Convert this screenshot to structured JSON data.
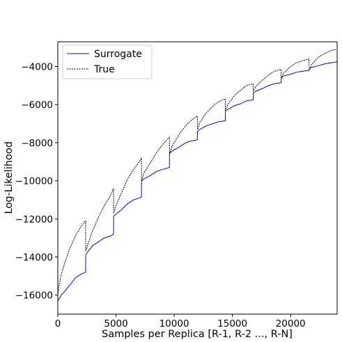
{
  "chart_data": {
    "type": "line",
    "title": "",
    "xlabel": "Samples per Replica [R-1, R-2 ..., R-N]",
    "ylabel": "Log-Likelihood",
    "xlim": [
      0,
      24000
    ],
    "ylim": [
      -17000,
      -2700
    ],
    "xticks": [
      0,
      5000,
      10000,
      15000,
      20000
    ],
    "xtick_labels": [
      "0",
      "5000",
      "10000",
      "15000",
      "20000"
    ],
    "yticks": [
      -16000,
      -14000,
      -12000,
      -10000,
      -8000,
      -6000,
      -4000
    ],
    "ytick_labels": [
      "−16000",
      "−14000",
      "−12000",
      "−10000",
      "−8000",
      "−6000",
      "−4000"
    ],
    "grid": false,
    "legend_position": "top-left",
    "series": [
      {
        "name": "Surrogate",
        "color": "#0000ff",
        "style": "solid",
        "x": [
          0,
          100,
          300,
          600,
          1000,
          1500,
          2000,
          2390,
          2400,
          2600,
          3000,
          3500,
          4000,
          4500,
          4790,
          4800,
          5000,
          5500,
          6000,
          6500,
          7000,
          7190,
          7200,
          7400,
          8000,
          8500,
          9000,
          9590,
          9600,
          9800,
          10500,
          11000,
          11500,
          11990,
          12000,
          12200,
          12800,
          13300,
          13800,
          14390,
          14400,
          14600,
          15200,
          15700,
          16200,
          16790,
          16800,
          17000,
          17600,
          18100,
          18600,
          19190,
          19200,
          19400,
          20000,
          20500,
          21000,
          21590,
          21600,
          21800,
          22400,
          23000,
          23500,
          24000
        ],
        "y": [
          -16300,
          -16200,
          -16000,
          -15800,
          -15500,
          -15100,
          -14900,
          -14800,
          -13900,
          -13700,
          -13400,
          -13200,
          -13000,
          -12900,
          -12800,
          -11850,
          -11750,
          -11500,
          -11200,
          -11000,
          -10900,
          -10850,
          -10000,
          -9900,
          -9700,
          -9500,
          -9400,
          -9300,
          -8550,
          -8450,
          -8200,
          -8000,
          -7900,
          -7850,
          -7400,
          -7300,
          -7100,
          -7000,
          -6900,
          -6850,
          -6350,
          -6250,
          -6050,
          -5950,
          -5800,
          -5750,
          -5400,
          -5300,
          -5150,
          -5000,
          -4900,
          -4850,
          -4600,
          -4500,
          -4400,
          -4300,
          -4250,
          -4200,
          -4150,
          -4050,
          -3950,
          -3850,
          -3800,
          -3750
        ]
      },
      {
        "name": "True",
        "color": "#000000",
        "style": "dashed",
        "x": [
          0,
          100,
          300,
          600,
          1000,
          1500,
          2000,
          2390,
          2400,
          2600,
          3000,
          3500,
          4000,
          4500,
          4790,
          4800,
          5000,
          5500,
          6000,
          6500,
          7000,
          7190,
          7200,
          7400,
          8000,
          8500,
          9000,
          9590,
          9600,
          9800,
          10500,
          11000,
          11500,
          11990,
          12000,
          12200,
          12800,
          13300,
          13800,
          14390,
          14400,
          14600,
          15200,
          15700,
          16200,
          16790,
          16800,
          17000,
          17600,
          18100,
          18600,
          19190,
          19200,
          19400,
          20000,
          20500,
          21000,
          21590,
          21600,
          21800,
          22400,
          23000,
          23500,
          24000
        ],
        "y": [
          -16000,
          -15500,
          -14900,
          -14300,
          -13600,
          -12900,
          -12400,
          -12100,
          -13700,
          -13300,
          -12600,
          -11900,
          -11300,
          -10800,
          -10400,
          -11700,
          -11300,
          -10600,
          -9900,
          -9400,
          -9000,
          -8800,
          -10000,
          -9600,
          -9000,
          -8500,
          -8100,
          -7700,
          -8600,
          -8200,
          -7500,
          -7100,
          -6800,
          -6600,
          -7300,
          -6950,
          -6400,
          -6100,
          -5850,
          -5700,
          -6300,
          -6000,
          -5500,
          -5250,
          -5000,
          -4900,
          -5300,
          -5050,
          -4700,
          -4450,
          -4250,
          -4150,
          -4600,
          -4350,
          -4000,
          -3800,
          -3700,
          -3600,
          -4200,
          -3900,
          -3500,
          -3300,
          -3150,
          -3100
        ]
      }
    ]
  }
}
